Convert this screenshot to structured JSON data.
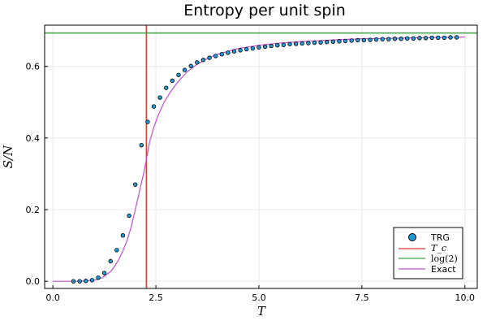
{
  "chart_data": {
    "type": "line",
    "title": "Entropy per unit spin",
    "xlabel": "T",
    "ylabel": "S/N",
    "xlim": [
      -0.2,
      10.3
    ],
    "ylim": [
      -0.02,
      0.715
    ],
    "xticks": [
      0.0,
      2.5,
      5.0,
      7.5,
      10.0
    ],
    "xtick_labels": [
      "0.0",
      "2.5",
      "5.0",
      "7.5",
      "10.0"
    ],
    "yticks": [
      0.0,
      0.2,
      0.4,
      0.6
    ],
    "ytick_labels": [
      "0.0",
      "0.2",
      "0.4",
      "0.6"
    ],
    "grid": true,
    "legend_position": "bottom-right",
    "series": [
      {
        "name": "TRG",
        "kind": "scatter",
        "color": "#1f9bd9",
        "x": [
          0.5,
          0.65,
          0.8,
          0.95,
          1.1,
          1.25,
          1.4,
          1.55,
          1.7,
          1.85,
          2.0,
          2.15,
          2.3,
          2.45,
          2.6,
          2.75,
          2.9,
          3.05,
          3.2,
          3.35,
          3.5,
          3.65,
          3.8,
          3.95,
          4.1,
          4.25,
          4.4,
          4.55,
          4.7,
          4.85,
          5.0,
          5.15,
          5.3,
          5.45,
          5.6,
          5.75,
          5.9,
          6.05,
          6.2,
          6.35,
          6.5,
          6.65,
          6.8,
          6.95,
          7.1,
          7.25,
          7.4,
          7.55,
          7.7,
          7.85,
          8.0,
          8.15,
          8.3,
          8.45,
          8.6,
          8.75,
          8.9,
          9.05,
          9.2,
          9.35,
          9.5,
          9.65,
          9.8
        ],
        "y": [
          0.0,
          0.0,
          0.001,
          0.003,
          0.01,
          0.023,
          0.056,
          0.087,
          0.128,
          0.183,
          0.27,
          0.38,
          0.445,
          0.488,
          0.513,
          0.54,
          0.56,
          0.576,
          0.59,
          0.601,
          0.611,
          0.618,
          0.624,
          0.629,
          0.634,
          0.638,
          0.642,
          0.645,
          0.648,
          0.65,
          0.653,
          0.655,
          0.657,
          0.659,
          0.66,
          0.662,
          0.663,
          0.664,
          0.665,
          0.666,
          0.667,
          0.668,
          0.669,
          0.67,
          0.671,
          0.672,
          0.673,
          0.673,
          0.674,
          0.675,
          0.676,
          0.676,
          0.677,
          0.677,
          0.678,
          0.678,
          0.679,
          0.679,
          0.68,
          0.68,
          0.68,
          0.681,
          0.681
        ]
      },
      {
        "name": "T_c",
        "label_display": "T_c",
        "kind": "vline",
        "color": "#e03a2e",
        "x": 2.269
      },
      {
        "name": "log(2)",
        "label_display": "log(2)",
        "kind": "hline",
        "color": "#3aa142",
        "y": 0.6931
      },
      {
        "name": "Exact",
        "kind": "line",
        "color": "#c14fd0",
        "x": [
          0.0,
          0.5,
          0.8,
          1.0,
          1.2,
          1.4,
          1.5,
          1.6,
          1.7,
          1.8,
          1.9,
          2.0,
          2.1,
          2.2,
          2.269,
          2.35,
          2.45,
          2.55,
          2.7,
          2.85,
          3.0,
          3.25,
          3.5,
          3.75,
          4.0,
          4.5,
          5.0,
          5.5,
          6.0,
          6.5,
          7.0,
          7.5,
          8.0,
          8.5,
          9.0,
          9.5,
          10.0
        ],
        "y": [
          0.0,
          0.0,
          0.001,
          0.003,
          0.01,
          0.027,
          0.042,
          0.061,
          0.085,
          0.114,
          0.152,
          0.2,
          0.25,
          0.3,
          0.34,
          0.39,
          0.43,
          0.462,
          0.5,
          0.528,
          0.552,
          0.584,
          0.606,
          0.622,
          0.634,
          0.65,
          0.659,
          0.665,
          0.669,
          0.672,
          0.675,
          0.677,
          0.678,
          0.679,
          0.68,
          0.681,
          0.682
        ]
      }
    ]
  }
}
